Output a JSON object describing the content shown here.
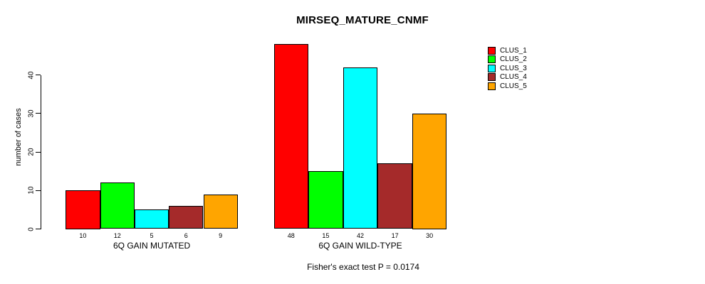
{
  "chart_data": {
    "type": "bar",
    "title": "MIRSEQ_MATURE_CNMF",
    "ylabel": "number of cases",
    "xlabel": "",
    "categories": [
      "6Q GAIN MUTATED",
      "6Q GAIN WILD-TYPE"
    ],
    "series": [
      {
        "name": "CLUS_1",
        "color": "#FF0000",
        "values": [
          10,
          48
        ]
      },
      {
        "name": "CLUS_2",
        "color": "#00FF00",
        "values": [
          12,
          15
        ]
      },
      {
        "name": "CLUS_3",
        "color": "#00FFFF",
        "values": [
          5,
          42
        ]
      },
      {
        "name": "CLUS_4",
        "color": "#A52A2A",
        "values": [
          6,
          17
        ]
      },
      {
        "name": "CLUS_5",
        "color": "#FFA500",
        "values": [
          9,
          30
        ]
      }
    ],
    "yticks": [
      0,
      10,
      20,
      30,
      40
    ],
    "ylim": [
      0,
      48
    ],
    "grid": false,
    "bar_value_labels": true,
    "legend_position": "top-right",
    "legend_entries": [
      "CLUS_1",
      "CLUS_2",
      "CLUS_3",
      "CLUS_4",
      "CLUS_5"
    ],
    "footnote": "Fisher's exact test P = 0.0174",
    "background_color": "#FFFFFF",
    "text_color": "#000000"
  }
}
